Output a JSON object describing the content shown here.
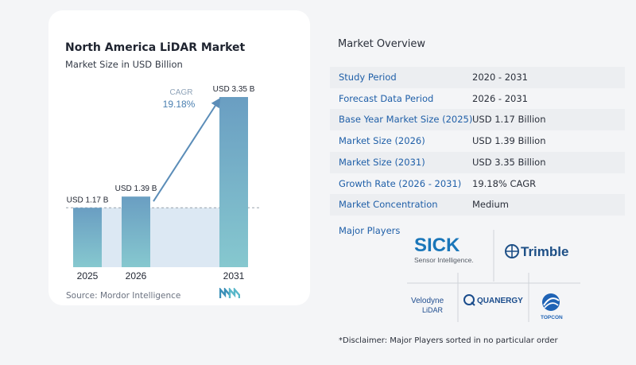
{
  "chart": {
    "title": "North America LiDAR Market",
    "subtitle": "Market Size in USD Billion",
    "source": "Source:  Mordor Intelligence",
    "cagr_label": "CAGR",
    "cagr_value": "19.18%"
  },
  "chart_data": {
    "type": "bar",
    "categories": [
      "2025",
      "2026",
      "2031"
    ],
    "values": [
      1.17,
      1.39,
      3.35
    ],
    "data_labels": [
      "USD 1.17 B",
      "USD 1.39 B",
      "USD 3.35 B"
    ],
    "title": "North America LiDAR Market",
    "subtitle": "Market Size in USD Billion",
    "xlabel": "",
    "ylabel": "",
    "ylim": [
      0,
      3.35
    ],
    "annotation": "CAGR 19.18%",
    "colors": {
      "bar_top": "#6a9ec2",
      "bar_bottom": "#86c8cf",
      "baseline_fill": "#dce8f3",
      "arrow": "#5b8db8"
    }
  },
  "overview": {
    "title": "Market Overview",
    "rows": [
      {
        "key": "Study Period",
        "value": "2020 - 2031"
      },
      {
        "key": "Forecast Data Period",
        "value": "2026 - 2031"
      },
      {
        "key": "Base Year Market Size (2025)",
        "value": "USD 1.17 Billion"
      },
      {
        "key": "Market Size (2026)",
        "value": "USD 1.39 Billion"
      },
      {
        "key": "Market Size (2031)",
        "value": "USD 3.35 Billion"
      },
      {
        "key": "Growth Rate (2026 - 2031)",
        "value": "19.18% CAGR"
      },
      {
        "key": "Market Concentration",
        "value": "Medium"
      }
    ]
  },
  "players": {
    "title": "Major Players",
    "logos": {
      "sick": "SICK",
      "sick_tagline": "Sensor Intelligence.",
      "trimble": "Trimble",
      "velodyne_1": "Velodyne",
      "velodyne_2": "LiDAR",
      "quanergy": "QUANERGY",
      "topcon": "TOPCON"
    },
    "disclaimer": "*Disclaimer: Major Players sorted in no particular order"
  }
}
